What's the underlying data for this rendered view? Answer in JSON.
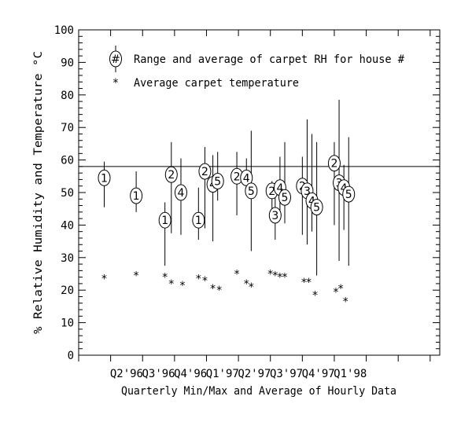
{
  "chart_data": {
    "type": "scatter",
    "title": "",
    "xlabel": "Quarterly Min/Max and Average of Hourly Data",
    "ylabel": "% Relative Humidity and Temperature °C",
    "ylim": [
      0,
      100
    ],
    "yticks": [
      0,
      10,
      20,
      30,
      40,
      50,
      60,
      70,
      80,
      90,
      100
    ],
    "xlim": [
      0,
      11.3
    ],
    "categories": [
      "Q2'96",
      "Q3'96",
      "Q4'96",
      "Q1'97",
      "Q2'97",
      "Q3'97",
      "Q4'97",
      "Q1'98"
    ],
    "category_positions": [
      1.5,
      2.5,
      3.5,
      4.5,
      5.5,
      6.5,
      7.5,
      8.5
    ],
    "reference_line": 58,
    "legend": {
      "position": "top-left",
      "rh_symbol": "#",
      "rh_label": "Range and average of carpet RH for house #",
      "temp_symbol": "*",
      "temp_label": "Average carpet temperature"
    },
    "rh_series": [
      {
        "x": 0.8,
        "house": "1",
        "min": 45.5,
        "avg": 54.5,
        "max": 59.5
      },
      {
        "x": 1.8,
        "house": "1",
        "min": 44,
        "avg": 49,
        "max": 56.5
      },
      {
        "x": 2.7,
        "house": "1",
        "min": 27.5,
        "avg": 41.5,
        "max": 47
      },
      {
        "x": 2.9,
        "house": "2",
        "min": 37.5,
        "avg": 55.5,
        "max": 65.5
      },
      {
        "x": 3.2,
        "house": "4",
        "min": 37,
        "avg": 50,
        "max": 60.5
      },
      {
        "x": 3.75,
        "house": "1",
        "min": 35.5,
        "avg": 41.5,
        "max": 51.5
      },
      {
        "x": 3.95,
        "house": "2",
        "min": 39,
        "avg": 56.5,
        "max": 64
      },
      {
        "x": 4.2,
        "house": "4",
        "min": 35,
        "avg": 52.5,
        "max": 61.5
      },
      {
        "x": 4.35,
        "house": "5",
        "min": 47.5,
        "avg": 53.5,
        "max": 62.5
      },
      {
        "x": 4.95,
        "house": "2",
        "min": 43,
        "avg": 55,
        "max": 62.5
      },
      {
        "x": 5.25,
        "house": "4",
        "min": 50,
        "avg": 54.5,
        "max": 60.5
      },
      {
        "x": 5.4,
        "house": "5",
        "min": 32,
        "avg": 50.5,
        "max": 69
      },
      {
        "x": 6.05,
        "house": "2",
        "min": 45,
        "avg": 50.5,
        "max": 53.5
      },
      {
        "x": 6.15,
        "house": "3",
        "min": 35.5,
        "avg": 43,
        "max": 52
      },
      {
        "x": 6.3,
        "house": "4",
        "min": 44.5,
        "avg": 51.5,
        "max": 61
      },
      {
        "x": 6.45,
        "house": "5",
        "min": 40.5,
        "avg": 48.5,
        "max": 65.5
      },
      {
        "x": 7.0,
        "house": "2",
        "min": 37,
        "avg": 52,
        "max": 61
      },
      {
        "x": 7.15,
        "house": "3",
        "min": 34,
        "avg": 50.5,
        "max": 72.5
      },
      {
        "x": 7.3,
        "house": "4",
        "min": 38,
        "avg": 47.5,
        "max": 68
      },
      {
        "x": 7.45,
        "house": "5",
        "min": 24.5,
        "avg": 45.5,
        "max": 65.5
      },
      {
        "x": 8.0,
        "house": "2",
        "min": 40,
        "avg": 59,
        "max": 65.5
      },
      {
        "x": 8.15,
        "house": "3",
        "min": 29,
        "avg": 53,
        "max": 78.5
      },
      {
        "x": 8.3,
        "house": "4",
        "min": 38.5,
        "avg": 51.5,
        "max": 58.5
      },
      {
        "x": 8.45,
        "house": "5",
        "min": 27.5,
        "avg": 49.5,
        "max": 67
      }
    ],
    "temp_series": [
      {
        "x": 0.8,
        "value": 23.5
      },
      {
        "x": 1.8,
        "value": 24.5
      },
      {
        "x": 2.7,
        "value": 24
      },
      {
        "x": 2.9,
        "value": 22
      },
      {
        "x": 3.25,
        "value": 21.5
      },
      {
        "x": 3.75,
        "value": 23.5
      },
      {
        "x": 3.95,
        "value": 23
      },
      {
        "x": 4.2,
        "value": 20.5
      },
      {
        "x": 4.4,
        "value": 20
      },
      {
        "x": 4.95,
        "value": 25
      },
      {
        "x": 5.25,
        "value": 22
      },
      {
        "x": 5.4,
        "value": 21
      },
      {
        "x": 6.0,
        "value": 25
      },
      {
        "x": 6.15,
        "value": 24.5
      },
      {
        "x": 6.3,
        "value": 24
      },
      {
        "x": 6.45,
        "value": 24
      },
      {
        "x": 7.05,
        "value": 22.5
      },
      {
        "x": 7.2,
        "value": 22.5
      },
      {
        "x": 7.4,
        "value": 18.5
      },
      {
        "x": 8.05,
        "value": 19.5
      },
      {
        "x": 8.2,
        "value": 20.5
      },
      {
        "x": 8.35,
        "value": 16.5
      }
    ]
  }
}
